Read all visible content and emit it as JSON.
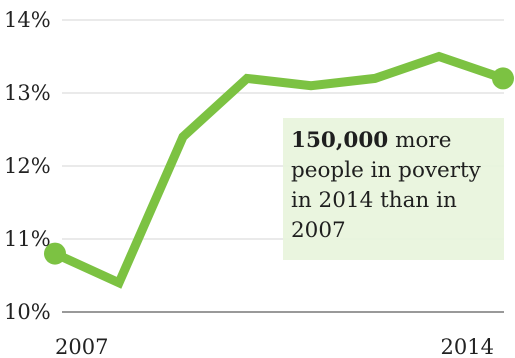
{
  "chart_data": {
    "type": "line",
    "x": [
      2007,
      2008,
      2009,
      2010,
      2011,
      2012,
      2013,
      2014
    ],
    "y": [
      10.8,
      10.4,
      12.4,
      13.2,
      13.1,
      13.2,
      13.5,
      13.2
    ],
    "ylim": [
      10,
      14
    ],
    "y_ticks": [
      "10%",
      "11%",
      "12%",
      "13%",
      "14%"
    ],
    "x_tick_labels": [
      "2007",
      "2014"
    ],
    "grid": true,
    "colors": {
      "line": "#7cc242",
      "grid": "#d5d5d5",
      "baseline": "#999999"
    },
    "annotation": {
      "bold": "150,000",
      "rest": " more people in poverty in 2014 than in 2007"
    }
  }
}
